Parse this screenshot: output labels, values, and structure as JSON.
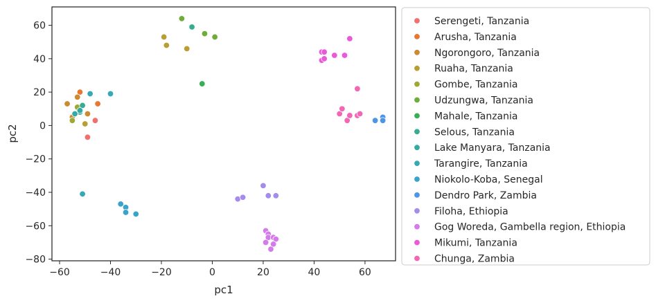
{
  "chart_data": {
    "type": "scatter",
    "xlabel": "pc1",
    "ylabel": "pc2",
    "xlim": [
      -63,
      72
    ],
    "ylim": [
      -81,
      71
    ],
    "xticks": [
      -60,
      -40,
      -20,
      0,
      20,
      40,
      60
    ],
    "yticks": [
      -80,
      -60,
      -40,
      -20,
      0,
      20,
      40,
      60
    ],
    "xtick_labels": [
      "−60",
      "−40",
      "−20",
      "0",
      "20",
      "40",
      "60"
    ],
    "ytick_labels": [
      "−80",
      "−60",
      "−40",
      "−20",
      "0",
      "20",
      "40",
      "60"
    ],
    "grid": false,
    "legend_position": "outside-right",
    "series": [
      {
        "name": "Serengeti, Tanzania",
        "color": "#f0706d",
        "points": [
          [
            -49,
            -7
          ],
          [
            -46,
            3
          ],
          [
            -50,
            1
          ]
        ]
      },
      {
        "name": "Arusha, Tanzania",
        "color": "#e8772f",
        "points": [
          [
            -52,
            20
          ],
          [
            -45,
            13
          ]
        ]
      },
      {
        "name": "Ngorongoro, Tanzania",
        "color": "#cd8a33",
        "points": [
          [
            -57,
            13
          ],
          [
            -53,
            17
          ],
          [
            -49,
            7
          ],
          [
            -55,
            5
          ]
        ]
      },
      {
        "name": "Ruaha, Tanzania",
        "color": "#b89e34",
        "points": [
          [
            -19,
            53
          ],
          [
            -18,
            48
          ],
          [
            -10,
            46
          ],
          [
            -50,
            1
          ]
        ]
      },
      {
        "name": "Gombe, Tanzania",
        "color": "#a0a835",
        "points": [
          [
            -55,
            3
          ],
          [
            -53,
            11
          ]
        ]
      },
      {
        "name": "Udzungwa, Tanzania",
        "color": "#6fac3b",
        "points": [
          [
            -12,
            64
          ],
          [
            -3,
            55
          ],
          [
            1,
            53
          ]
        ]
      },
      {
        "name": "Mahale, Tanzania",
        "color": "#3aae56",
        "points": [
          [
            -4,
            25
          ]
        ]
      },
      {
        "name": "Selous, Tanzania",
        "color": "#37ac90",
        "points": [
          [
            -8,
            59
          ],
          [
            -51,
            12
          ],
          [
            -52,
            8
          ]
        ]
      },
      {
        "name": "Lake Manyara, Tanzania",
        "color": "#36aaa2",
        "points": [
          [
            -54,
            7
          ],
          [
            -52,
            9
          ]
        ]
      },
      {
        "name": "Tarangire, Tanzania",
        "color": "#37a8b4",
        "points": [
          [
            -48,
            19
          ],
          [
            -40,
            19
          ],
          [
            -51,
            -41
          ]
        ]
      },
      {
        "name": "Niokolo-Koba, Senegal",
        "color": "#3aa3cc",
        "points": [
          [
            -36,
            -47
          ],
          [
            -34,
            -49
          ],
          [
            -34,
            -52
          ],
          [
            -30,
            -53
          ]
        ]
      },
      {
        "name": "Dendro Park, Zambia",
        "color": "#4d96e4",
        "points": [
          [
            64,
            3
          ],
          [
            67,
            5
          ],
          [
            67,
            3
          ]
        ]
      },
      {
        "name": "Filoha, Ethiopia",
        "color": "#a58cec",
        "points": [
          [
            10,
            -44
          ],
          [
            12,
            -43
          ],
          [
            20,
            -36
          ],
          [
            22,
            -42
          ],
          [
            25,
            -42
          ]
        ]
      },
      {
        "name": "Gog Woreda, Gambella region, Ethiopia",
        "color": "#d47aeb",
        "points": [
          [
            21,
            -63
          ],
          [
            22,
            -65
          ],
          [
            22,
            -67
          ],
          [
            21,
            -70
          ],
          [
            23,
            -74
          ],
          [
            24,
            -67
          ],
          [
            25,
            -68
          ],
          [
            24,
            -71
          ]
        ]
      },
      {
        "name": "Mikumi, Tanzania",
        "color": "#ea59d9",
        "points": [
          [
            43,
            44
          ],
          [
            44,
            44
          ],
          [
            43,
            39
          ],
          [
            44,
            40
          ],
          [
            48,
            42
          ],
          [
            52,
            42
          ],
          [
            54,
            52
          ]
        ]
      },
      {
        "name": "Chunga, Zambia",
        "color": "#f266b3",
        "points": [
          [
            50,
            7
          ],
          [
            51,
            10
          ],
          [
            53,
            3
          ],
          [
            54,
            6
          ],
          [
            57,
            6
          ],
          [
            58,
            7
          ],
          [
            57,
            22
          ]
        ]
      }
    ]
  }
}
